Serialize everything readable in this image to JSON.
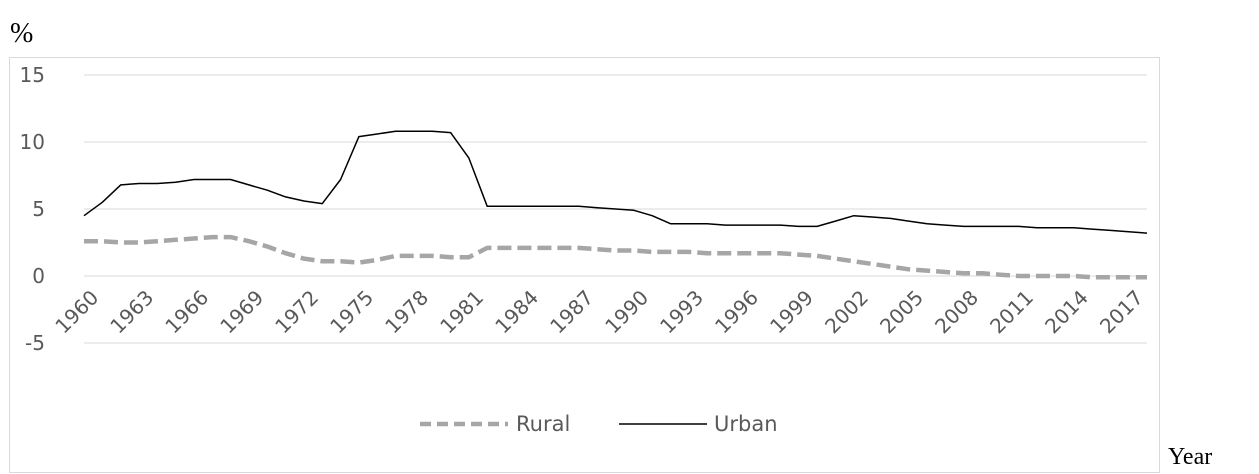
{
  "chart_data": {
    "type": "line",
    "y_unit_label": "%",
    "x_axis_name": "Year",
    "ylim": [
      -5,
      15
    ],
    "yticks": [
      15,
      10,
      5,
      0,
      -5
    ],
    "xlim": [
      1960,
      2018
    ],
    "xticks": [
      1960,
      1963,
      1966,
      1969,
      1972,
      1975,
      1978,
      1981,
      1984,
      1987,
      1990,
      1993,
      1996,
      1999,
      2002,
      2005,
      2008,
      2011,
      2014,
      2017
    ],
    "grid": true,
    "legend_position": "bottom",
    "series": [
      {
        "name": "Rural",
        "style": "dashed",
        "color": "#a6a6a6",
        "x": [
          1960,
          1961,
          1962,
          1963,
          1964,
          1965,
          1966,
          1967,
          1968,
          1969,
          1970,
          1971,
          1972,
          1973,
          1974,
          1975,
          1976,
          1977,
          1978,
          1979,
          1980,
          1981,
          1982,
          1983,
          1984,
          1985,
          1986,
          1987,
          1988,
          1989,
          1990,
          1991,
          1992,
          1993,
          1994,
          1995,
          1996,
          1997,
          1998,
          1999,
          2000,
          2001,
          2002,
          2003,
          2004,
          2005,
          2006,
          2007,
          2008,
          2009,
          2010,
          2011,
          2012,
          2013,
          2014,
          2015,
          2016,
          2017,
          2018
        ],
        "values": [
          2.6,
          2.6,
          2.5,
          2.5,
          2.6,
          2.7,
          2.8,
          2.9,
          2.9,
          2.6,
          2.2,
          1.7,
          1.3,
          1.1,
          1.1,
          1.0,
          1.2,
          1.5,
          1.5,
          1.5,
          1.4,
          1.4,
          2.1,
          2.1,
          2.1,
          2.1,
          2.1,
          2.1,
          2.0,
          1.9,
          1.9,
          1.8,
          1.8,
          1.8,
          1.7,
          1.7,
          1.7,
          1.7,
          1.7,
          1.6,
          1.5,
          1.3,
          1.1,
          0.9,
          0.7,
          0.5,
          0.4,
          0.3,
          0.2,
          0.2,
          0.1,
          0.0,
          0.0,
          0.0,
          0.0,
          -0.1,
          -0.1,
          -0.1,
          -0.1
        ]
      },
      {
        "name": "Urban",
        "style": "solid",
        "color": "#000000",
        "x": [
          1960,
          1961,
          1962,
          1963,
          1964,
          1965,
          1966,
          1967,
          1968,
          1969,
          1970,
          1971,
          1972,
          1973,
          1974,
          1975,
          1976,
          1977,
          1978,
          1979,
          1980,
          1981,
          1982,
          1983,
          1984,
          1985,
          1986,
          1987,
          1988,
          1989,
          1990,
          1991,
          1992,
          1993,
          1994,
          1995,
          1996,
          1997,
          1998,
          1999,
          2000,
          2001,
          2002,
          2003,
          2004,
          2005,
          2006,
          2007,
          2008,
          2009,
          2010,
          2011,
          2012,
          2013,
          2014,
          2015,
          2016,
          2017,
          2018
        ],
        "values": [
          4.5,
          5.5,
          6.8,
          6.9,
          6.9,
          7.0,
          7.2,
          7.2,
          7.2,
          6.8,
          6.4,
          5.9,
          5.6,
          5.4,
          7.2,
          10.4,
          10.6,
          10.8,
          10.8,
          10.8,
          10.7,
          8.8,
          5.2,
          5.2,
          5.2,
          5.2,
          5.2,
          5.2,
          5.1,
          5.0,
          4.9,
          4.5,
          3.9,
          3.9,
          3.9,
          3.8,
          3.8,
          3.8,
          3.8,
          3.7,
          3.7,
          4.1,
          4.5,
          4.4,
          4.3,
          4.1,
          3.9,
          3.8,
          3.7,
          3.7,
          3.7,
          3.7,
          3.6,
          3.6,
          3.6,
          3.5,
          3.4,
          3.3,
          3.2
        ]
      }
    ]
  }
}
